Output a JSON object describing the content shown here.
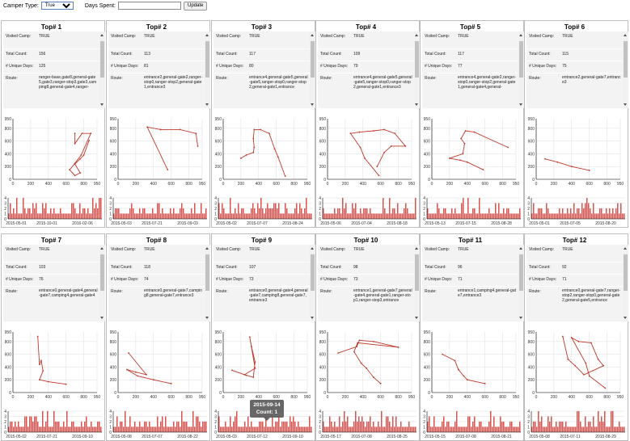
{
  "toolbar": {
    "camper_type_label": "Camper Type:",
    "camper_type_value": "True",
    "days_spent_label": "Days Spent:",
    "days_spent_value": "",
    "update_label": "Update"
  },
  "field_labels": {
    "visited_camp": "Visited Camp:",
    "total_count": "Total Count:",
    "unique_days": "# Unique Days:",
    "route": "Route:"
  },
  "tooltip": {
    "date": "2015-09-14",
    "count": "Count: 1"
  },
  "colors": {
    "line": "#c0392b",
    "bar": "#d9534f",
    "grid": "#dddddd"
  },
  "panels": [
    {
      "title": "Top# 1",
      "visited_camp": "TRUE",
      "total_count": "156",
      "unique_days": "125",
      "route": "ranger-base,gate8,general-gate5,gate3,ranger-stop3,gate3,camping8,general-gate4,ranger-",
      "dates": [
        "2015-05-01",
        "2015-10-01",
        "2016-02-06"
      ]
    },
    {
      "title": "Top# 2",
      "visited_camp": "TRUE",
      "total_count": "113",
      "unique_days": "81",
      "route": "entrance2,general-gate2,ranger-stop0,ranger-stop2,general-gate1,entrance3",
      "dates": [
        "2015-05-03",
        "2015-07-21",
        "2015-09-03"
      ]
    },
    {
      "title": "Top# 3",
      "visited_camp": "TRUE",
      "total_count": "117",
      "unique_days": "80",
      "route": "entrance4,general-gate5,general-gate5,ranger-stop0,ranger-stop2,general-gate1,entrance",
      "dates": [
        "2015-05-02",
        "2015-07-07",
        "2015-08-24"
      ]
    },
    {
      "title": "Top# 4",
      "visited_camp": "TRUE",
      "total_count": "109",
      "unique_days": "79",
      "route": "entrance4,general-gate5,general-gate5,ranger-stop0,ranger-stop2,general-gate1,entrance3",
      "dates": [
        "2015-05-06",
        "2015-07-04",
        "2015-08-18"
      ]
    },
    {
      "title": "Top# 5",
      "visited_camp": "TRUE",
      "total_count": "117",
      "unique_days": "77",
      "route": "entrance4,general-gate2,ranger-stop0,ranger-stop2,general-gate1,general-gate4,general-",
      "dates": [
        "2015-05-13",
        "2015-07-15",
        "2015-08-28"
      ]
    },
    {
      "title": "Top# 6",
      "visited_camp": "TRUE",
      "total_count": "115",
      "unique_days": "75",
      "route": "entrance2,general-gate7,entrance3",
      "dates": [
        "2015-05-01",
        "2015-07-05",
        "2015-08-20"
      ]
    },
    {
      "title": "Top# 7",
      "visited_camp": "TRUE",
      "total_count": "103",
      "unique_days": "76",
      "route": "entrance0,general-gate4,general-gate7,camping4,general-gate4",
      "dates": [
        "2015-05-02",
        "2015-07-21",
        "2015-09-10"
      ]
    },
    {
      "title": "Top# 8",
      "visited_camp": "TRUE",
      "total_count": "118",
      "unique_days": "74",
      "route": "entrance0,general-gate7,camping8,general-gate7,entrance3",
      "dates": [
        "2015-05-08",
        "2015-07-07",
        "2015-08-22"
      ]
    },
    {
      "title": "Top# 9",
      "visited_camp": "TRUE",
      "total_count": "107",
      "unique_days": "73",
      "route": "entrance0,general-gate4,general-gate7,camping8,general-gate7,entrance3",
      "dates": [
        "2015-05-03",
        "2015-07-12",
        "2015-09-10"
      ]
    },
    {
      "title": "Top# 10",
      "visited_camp": "TRUE",
      "total_count": "98",
      "unique_days": "73",
      "route": "entrance1,general-gate7,general-gate4,general-gate1,ranger-stop1,ranger-stop3,entrance",
      "dates": [
        "2015-05-17",
        "2015-07-08",
        "2015-08-25"
      ]
    },
    {
      "title": "Top# 11",
      "visited_camp": "TRUE",
      "total_count": "96",
      "unique_days": "71",
      "route": "entrance1,camping4,general-gate7,entrance3",
      "dates": [
        "2015-05-15",
        "2015-07-08",
        "2015-08-21"
      ]
    },
    {
      "title": "Top# 12",
      "visited_camp": "TRUE",
      "total_count": "92",
      "unique_days": "71",
      "route": "entrance0,general-gate7,ranger-stop2,ranger-stop0,general-gate2,general-gate5,entrance",
      "dates": [
        "2015-05-08",
        "2015-07-11",
        "2015-08-29"
      ]
    }
  ],
  "path_axis": {
    "x_ticks": [
      "0",
      "200",
      "400",
      "600",
      "800",
      "950"
    ],
    "y_ticks": [
      "0",
      "200",
      "400",
      "600",
      "800",
      "950"
    ]
  },
  "hist_axis": {
    "y_ticks": [
      "0",
      "1",
      "2",
      "3",
      "4"
    ]
  }
}
